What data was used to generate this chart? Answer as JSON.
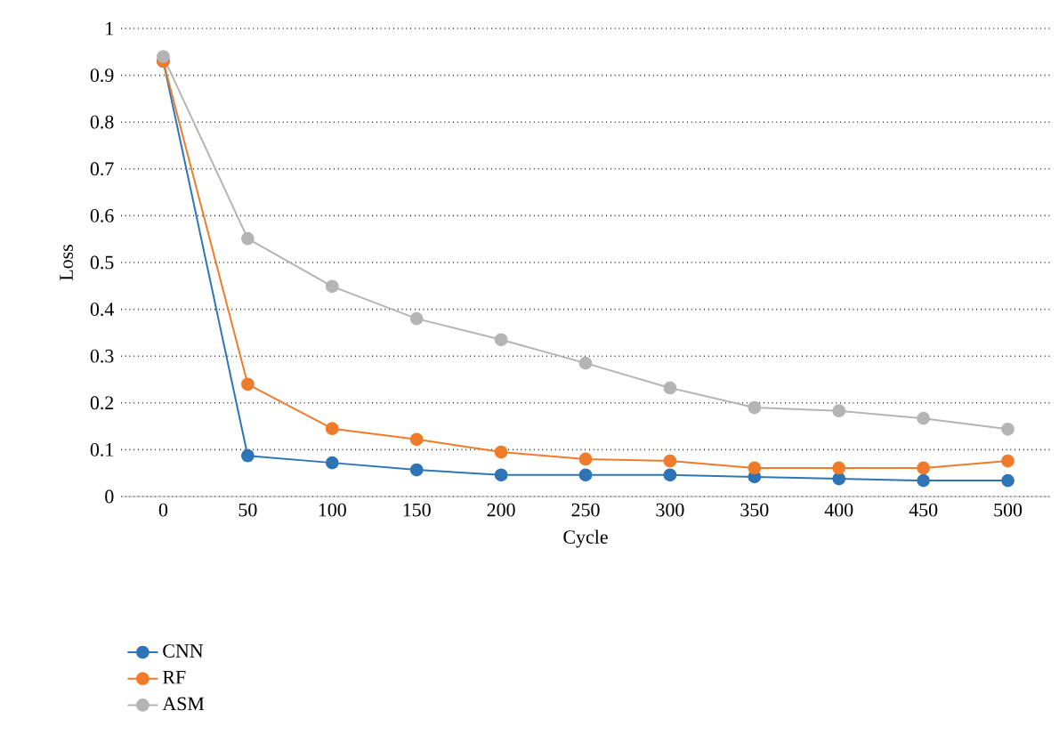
{
  "chart_data": {
    "type": "line",
    "xlabel": "Cycle",
    "ylabel": "Loss",
    "categories": [
      "0",
      "50",
      "100",
      "150",
      "200",
      "250",
      "300",
      "350",
      "400",
      "450",
      "500"
    ],
    "series": [
      {
        "name": "CNN",
        "color": "#2e75b6",
        "values": [
          0.93,
          0.087,
          0.072,
          0.057,
          0.046,
          0.046,
          0.046,
          0.042,
          0.038,
          0.034,
          0.034
        ]
      },
      {
        "name": "RF",
        "color": "#f07b2a",
        "values": [
          0.93,
          0.24,
          0.145,
          0.122,
          0.095,
          0.08,
          0.076,
          0.061,
          0.061,
          0.061,
          0.076
        ]
      },
      {
        "name": "ASM",
        "color": "#b4b4b4",
        "values": [
          0.94,
          0.551,
          0.449,
          0.38,
          0.335,
          0.285,
          0.232,
          0.19,
          0.183,
          0.167,
          0.144
        ]
      }
    ],
    "ylim": [
      0,
      1
    ],
    "yticks": [
      0,
      0.1,
      0.2,
      0.3,
      0.4,
      0.5,
      0.6,
      0.7,
      0.8,
      0.9,
      1
    ],
    "grid": "y",
    "legend": "bottom",
    "marker": "circle",
    "line_style": "solid"
  }
}
